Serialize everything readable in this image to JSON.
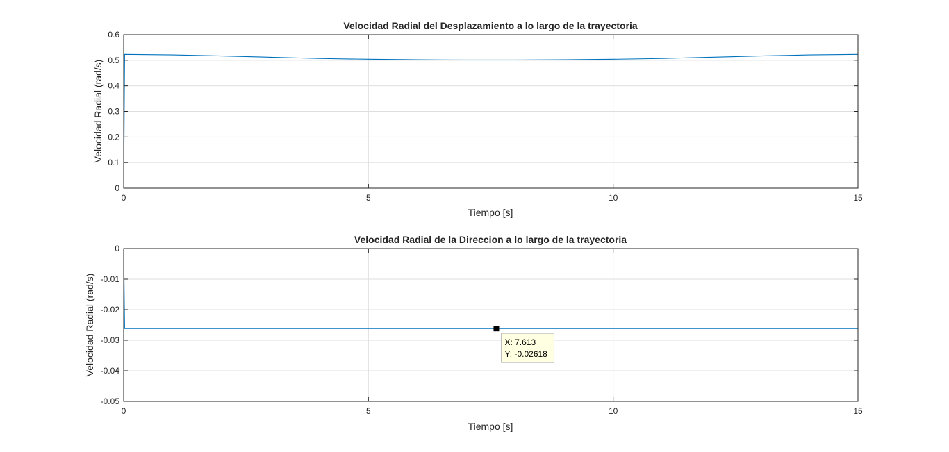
{
  "colors": {
    "series": "#0072bd",
    "grid": "#dedede",
    "axis": "#262626",
    "tooltip_bg": "#ffffe1",
    "tooltip_border": "#bdbdbd"
  },
  "chart_data": [
    {
      "type": "line",
      "title": "Velocidad Radial del Desplazamiento a lo largo de la trayectoria",
      "xlabel": "Tiempo [s]",
      "ylabel": "Velocidad Radial (rad/s)",
      "xlim": [
        0,
        15
      ],
      "ylim": [
        0,
        0.6
      ],
      "xticks": [
        0,
        5,
        10,
        15
      ],
      "xtick_labels": [
        "0",
        "5",
        "10",
        "15"
      ],
      "yticks": [
        0,
        0.1,
        0.2,
        0.3,
        0.4,
        0.5,
        0.6
      ],
      "ytick_labels": [
        "0",
        "0.1",
        "0.2",
        "0.3",
        "0.4",
        "0.5",
        "0.6"
      ],
      "grid": true,
      "series": [
        {
          "x": [
            0,
            0.02,
            1,
            2,
            3,
            4,
            5,
            6,
            7,
            7.5,
            8,
            9,
            10,
            11,
            12,
            13,
            14,
            15
          ],
          "y": [
            0,
            0.523,
            0.521,
            0.517,
            0.512,
            0.507,
            0.504,
            0.502,
            0.501,
            0.501,
            0.501,
            0.502,
            0.504,
            0.507,
            0.512,
            0.517,
            0.521,
            0.523
          ]
        }
      ]
    },
    {
      "type": "line",
      "title": "Velocidad Radial de la Direccion a lo largo de la trayectoria",
      "xlabel": "Tiempo [s]",
      "ylabel": "Velocidad Radial (rad/s)",
      "xlim": [
        0,
        15
      ],
      "ylim": [
        -0.05,
        0
      ],
      "xticks": [
        0,
        5,
        10,
        15
      ],
      "xtick_labels": [
        "0",
        "5",
        "10",
        "15"
      ],
      "yticks": [
        0,
        -0.01,
        -0.02,
        -0.03,
        -0.04,
        -0.05
      ],
      "ytick_labels": [
        "0",
        "-0.01",
        "-0.02",
        "-0.03",
        "-0.04",
        "-0.05"
      ],
      "grid": true,
      "series": [
        {
          "x": [
            0,
            0.02,
            15
          ],
          "y": [
            0,
            -0.02618,
            -0.02618
          ]
        }
      ],
      "datatip": {
        "x": 7.613,
        "y": -0.02618,
        "x_text": "X: 7.613",
        "y_text": "Y: -0.02618"
      }
    }
  ]
}
